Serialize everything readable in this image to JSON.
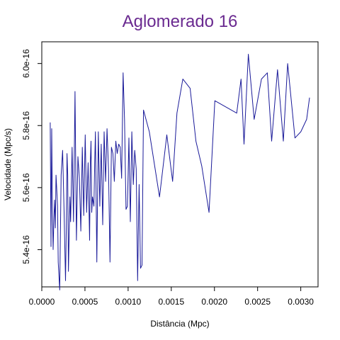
{
  "chart_data": {
    "type": "line",
    "title": "Aglomerado 16",
    "xlabel": "Distância (Mpc)",
    "ylabel": "Velocidade (Mpc/s)",
    "xlim": [
      0.0,
      0.0032
    ],
    "ylim": [
      5.28e-16,
      6.07e-16
    ],
    "grid": false,
    "legend": "none",
    "x_ticks": [
      {
        "value": 0.0,
        "label": "0.0000"
      },
      {
        "value": 0.0005,
        "label": "0.0005"
      },
      {
        "value": 0.001,
        "label": "0.0010"
      },
      {
        "value": 0.0015,
        "label": "0.0015"
      },
      {
        "value": 0.002,
        "label": "0.0020"
      },
      {
        "value": 0.0025,
        "label": "0.0025"
      },
      {
        "value": 0.003,
        "label": "0.0030"
      }
    ],
    "y_ticks": [
      {
        "value": 5.4e-16,
        "label": "5.4e-16"
      },
      {
        "value": 5.6e-16,
        "label": "5.6e-16"
      },
      {
        "value": 5.8e-16,
        "label": "5.8e-16"
      },
      {
        "value": 6e-16,
        "label": "6.0e-16"
      }
    ],
    "colors": {
      "line": "#1a1a99",
      "title": "#6a2a90",
      "axis": "#000000"
    },
    "series": [
      {
        "x": [
          9.79e-05,
          0.0001063,
          0.0001148,
          0.0001232,
          0.0001316,
          0.00014,
          0.0001485,
          0.0001569,
          0.0001653,
          0.0001737,
          0.0001822,
          0.0001906,
          0.0002075,
          0.0002244,
          0.0002413,
          0.0002581,
          0.000275,
          0.0002835,
          0.0002919,
          0.0003003,
          0.0003088,
          0.0003256,
          0.0003341,
          0.000351,
          0.0003678,
          0.0003847,
          0.0004016,
          0.0004185,
          0.0004353,
          0.0004522,
          0.0004691,
          0.000486,
          0.0005029,
          0.0005197,
          0.0005366,
          0.0005535,
          0.0005619,
          0.0005704,
          0.0005788,
          0.0005872,
          0.0006041,
          0.0006126,
          0.000621,
          0.0006379,
          0.0006548,
          0.0006716,
          0.0006885,
          0.0007054,
          0.0007223,
          0.0007391,
          0.000756,
          0.0007729,
          0.0007898,
          0.0008066,
          0.0008235,
          0.0008404,
          0.0008573,
          0.0008741,
          0.000891,
          0.0009079,
          0.0009248,
          0.0009416,
          0.0009585,
          0.0009754,
          0.0009923,
          0.0010091,
          0.001026,
          0.0010429,
          0.0010598,
          0.0010766,
          0.0010935,
          0.0011104,
          0.0011273,
          0.0011441,
          0.001161,
          0.0011779,
          0.0012453,
          0.0013634,
          0.0014478,
          0.0015153,
          0.0015659,
          0.0016334,
          0.0017178,
          0.0017853,
          0.0018528,
          0.0019372,
          0.0020047,
          0.0022578,
          0.0023084,
          0.0023422,
          0.0023928,
          0.0024603,
          0.0025447,
          0.0026122,
          0.0026628,
          0.0027303,
          0.0027978,
          0.0028484,
          0.0029328,
          0.0030003,
          0.0030678,
          0.0031016
        ],
        "y": [
          5.81e-16,
          5.41e-16,
          5.79e-16,
          5.53e-16,
          5.4e-16,
          5.5e-16,
          5.56e-16,
          5.47e-16,
          5.64e-16,
          5.59e-16,
          5.54e-16,
          5.36e-16,
          5.27e-16,
          5.64e-16,
          5.72e-16,
          5.52e-16,
          5.3e-16,
          5.47e-16,
          5.71e-16,
          5.64e-16,
          5.33e-16,
          5.57e-16,
          5.49e-16,
          5.73e-16,
          5.49e-16,
          5.91e-16,
          5.43e-16,
          5.7e-16,
          5.63e-16,
          5.46e-16,
          5.73e-16,
          5.51e-16,
          5.77e-16,
          5.52e-16,
          5.68e-16,
          5.43e-16,
          5.68e-16,
          5.75e-16,
          5.52e-16,
          5.57e-16,
          5.54e-16,
          5.68e-16,
          5.78e-16,
          5.36e-16,
          5.78e-16,
          5.54e-16,
          5.74e-16,
          5.48e-16,
          5.78e-16,
          5.62e-16,
          5.79e-16,
          5.66e-16,
          5.36e-16,
          5.73e-16,
          5.71e-16,
          5.62e-16,
          5.75e-16,
          5.71e-16,
          5.74e-16,
          5.73e-16,
          5.63e-16,
          5.97e-16,
          5.82e-16,
          5.53e-16,
          5.54e-16,
          5.76e-16,
          5.49e-16,
          5.78e-16,
          5.61e-16,
          5.72e-16,
          5.66e-16,
          5.3e-16,
          5.61e-16,
          5.34e-16,
          5.35e-16,
          5.85e-16,
          5.78e-16,
          5.57e-16,
          5.77e-16,
          5.62e-16,
          5.84e-16,
          5.95e-16,
          5.92e-16,
          5.75e-16,
          5.67e-16,
          5.52e-16,
          5.88e-16,
          5.84e-16,
          5.95e-16,
          5.74e-16,
          6.03e-16,
          5.82e-16,
          5.95e-16,
          5.97e-16,
          5.75e-16,
          5.98e-16,
          5.75e-16,
          6e-16,
          5.76e-16,
          5.78e-16,
          5.82e-16,
          5.89e-16
        ]
      }
    ]
  }
}
